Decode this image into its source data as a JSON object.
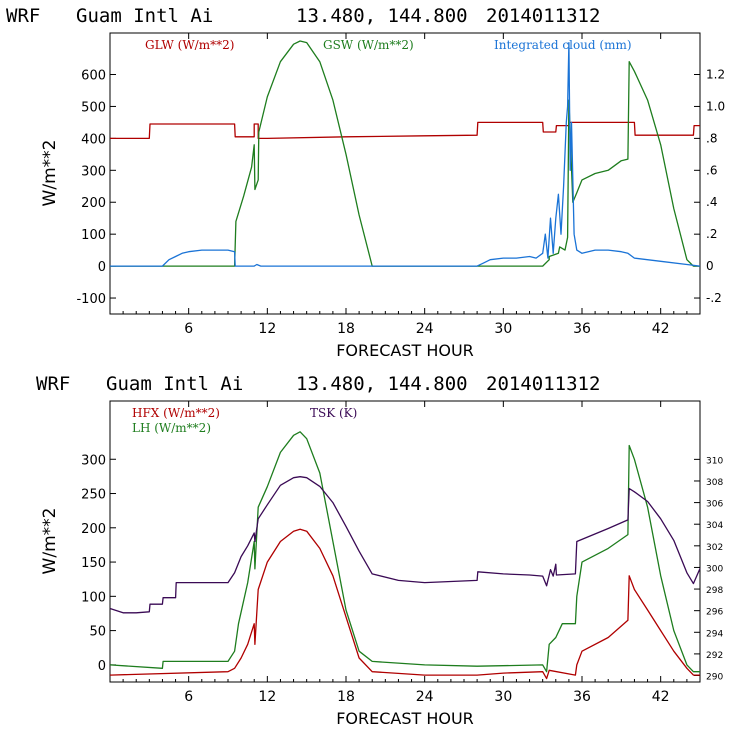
{
  "colors": {
    "red": "#b00000",
    "green": "#1e7d1e",
    "blue": "#1a73d6",
    "purple": "#3a0a55",
    "axis": "#000000"
  },
  "chart_data": [
    {
      "type": "line",
      "header": [
        "WRF",
        "Guam Intl Ai",
        "13.480, 144.800",
        "2014011312"
      ],
      "xlabel": "FORECAST HOUR",
      "ylabel": "W/m**2",
      "xlim": [
        0,
        45
      ],
      "ylim": [
        -150,
        730
      ],
      "y2lim": [
        -0.3,
        1.46
      ],
      "xticks": [
        6,
        12,
        18,
        24,
        30,
        36,
        42
      ],
      "xtick_labels": [
        "6",
        "12",
        "18",
        "24",
        "30",
        "36",
        "42"
      ],
      "yticks": [
        -100,
        0,
        100,
        200,
        300,
        400,
        500,
        600
      ],
      "ytick_labels": [
        "-100",
        "0",
        "100",
        "200",
        "300",
        "400",
        "500",
        "600"
      ],
      "y2ticks": [
        -0.2,
        0,
        0.2,
        0.4,
        0.6,
        0.8,
        1.0,
        1.2
      ],
      "y2tick_labels": [
        "-.2",
        "0",
        ".2",
        ".4",
        ".6",
        ".8",
        "1.0",
        "1.2"
      ],
      "series": [
        {
          "name": "GLW (W/m**2)",
          "color": "red",
          "axis": "left",
          "x": [
            0,
            3,
            3.05,
            9.5,
            9.55,
            11,
            11,
            11.3,
            11.3,
            12,
            18,
            24,
            28,
            28.05,
            33,
            33.05,
            34,
            34.05,
            35,
            35.05,
            40,
            40.05,
            44.5,
            44.55,
            45
          ],
          "y": [
            400,
            400,
            445,
            445,
            405,
            405,
            445,
            445,
            400,
            400,
            405,
            408,
            410,
            450,
            450,
            420,
            420,
            440,
            440,
            450,
            450,
            410,
            410,
            440,
            440
          ]
        },
        {
          "name": "GSW (W/m**2)",
          "color": "green",
          "axis": "left",
          "x": [
            0,
            9.5,
            9.6,
            10.2,
            10.8,
            11,
            11.05,
            11.3,
            11.35,
            12,
            13,
            14,
            14.5,
            15,
            16,
            17,
            18,
            19,
            20,
            20.05,
            33,
            33.5,
            33.5,
            34.2,
            34.3,
            34.7,
            34.9,
            35,
            35.3,
            35.6,
            35.7,
            36,
            37,
            38,
            39,
            39.5,
            39.6,
            40,
            41,
            42,
            43,
            44,
            44.5,
            45
          ],
          "y": [
            0,
            0,
            140,
            220,
            310,
            380,
            240,
            270,
            420,
            530,
            640,
            695,
            705,
            700,
            640,
            520,
            350,
            160,
            0,
            0,
            0,
            20,
            30,
            40,
            60,
            50,
            90,
            520,
            200,
            230,
            240,
            270,
            290,
            300,
            330,
            335,
            640,
            610,
            520,
            380,
            180,
            20,
            0,
            0
          ]
        },
        {
          "name": "Integrated cloud (mm)",
          "color": "blue",
          "axis": "right",
          "x": [
            0,
            4,
            4.5,
            5,
            5.5,
            6,
            7,
            9,
            9.5,
            9.55,
            11,
            11.2,
            11.5,
            12,
            28,
            28.5,
            29,
            30,
            31,
            32,
            32.5,
            33,
            33.2,
            33.4,
            33.6,
            33.8,
            34,
            34.2,
            34.4,
            34.6,
            34.8,
            34.9,
            35.0,
            35.1,
            35.2,
            35.4,
            35.6,
            36,
            37,
            38,
            39,
            39.5,
            40,
            42,
            44,
            45
          ],
          "y": [
            0,
            0,
            0.04,
            0.06,
            0.08,
            0.09,
            0.1,
            0.1,
            0.09,
            0,
            0,
            0.01,
            0,
            0,
            0,
            0.02,
            0.04,
            0.05,
            0.05,
            0.06,
            0.05,
            0.08,
            0.2,
            0.05,
            0.3,
            0.08,
            0.3,
            0.45,
            0.2,
            0.5,
            0.9,
            1.0,
            1.4,
            0.6,
            0.9,
            0.2,
            0.1,
            0.08,
            0.1,
            0.1,
            0.09,
            0.08,
            0.05,
            0.03,
            0.01,
            0
          ]
        }
      ]
    },
    {
      "type": "line",
      "header": [
        "WRF",
        "Guam Intl Ai",
        "13.480, 144.800",
        "2014011312"
      ],
      "xlabel": "FORECAST HOUR",
      "ylabel": "W/m**2",
      "xlim": [
        0,
        45
      ],
      "ylim": [
        -25,
        385
      ],
      "y2lim": [
        289.4,
        315.4
      ],
      "xticks": [
        6,
        12,
        18,
        24,
        30,
        36,
        42
      ],
      "xtick_labels": [
        "6",
        "12",
        "18",
        "24",
        "30",
        "36",
        "42"
      ],
      "yticks": [
        0,
        50,
        100,
        150,
        200,
        250,
        300
      ],
      "ytick_labels": [
        "0",
        "50",
        "100",
        "150",
        "200",
        "250",
        "300"
      ],
      "y2ticks": [
        290,
        292,
        294,
        296,
        298,
        300,
        302,
        304,
        306,
        308,
        310
      ],
      "y2tick_labels": [
        "290",
        "292",
        "294",
        "296",
        "298",
        "300",
        "302",
        "304",
        "306",
        "308",
        "310"
      ],
      "series": [
        {
          "name": "HFX (W/m**2)",
          "color": "red",
          "axis": "left",
          "x": [
            0,
            9,
            9.5,
            10,
            10.5,
            11,
            11.05,
            11.3,
            12,
            13,
            14,
            14.5,
            15,
            16,
            17,
            18,
            19,
            20,
            24,
            28,
            30,
            33,
            33.3,
            33.5,
            35.5,
            35.6,
            36,
            38,
            39.5,
            39.6,
            40,
            41,
            42,
            43,
            44,
            44.5,
            45
          ],
          "y": [
            -15,
            -10,
            -5,
            10,
            30,
            60,
            30,
            110,
            150,
            180,
            195,
            198,
            195,
            170,
            130,
            70,
            10,
            -10,
            -15,
            -15,
            -12,
            -10,
            -20,
            -8,
            -15,
            0,
            20,
            40,
            65,
            130,
            110,
            80,
            50,
            20,
            -5,
            -15,
            -15
          ]
        },
        {
          "name": "LH (W/m**2)",
          "color": "green",
          "axis": "left",
          "x": [
            0,
            4,
            4.05,
            9,
            9.5,
            9.8,
            10.5,
            11,
            11.05,
            11.3,
            12,
            13,
            14,
            14.5,
            15,
            16,
            17,
            18,
            19,
            20,
            24,
            28,
            33,
            33.3,
            33.5,
            34,
            34.5,
            35.5,
            35.6,
            36,
            38,
            39.5,
            39.6,
            40,
            41,
            42,
            43,
            44,
            44.5,
            45
          ],
          "y": [
            0,
            -5,
            5,
            5,
            20,
            60,
            120,
            180,
            140,
            230,
            260,
            310,
            335,
            340,
            330,
            280,
            180,
            80,
            20,
            5,
            0,
            -2,
            0,
            -10,
            30,
            40,
            60,
            60,
            100,
            150,
            170,
            190,
            320,
            300,
            230,
            130,
            50,
            0,
            -10,
            -10
          ]
        },
        {
          "name": "TSK (K)",
          "color": "purple",
          "axis": "right",
          "x": [
            0,
            1,
            2,
            3,
            3.05,
            4,
            4.05,
            5,
            5.05,
            9,
            9.5,
            10,
            10.5,
            11,
            11.05,
            11.3,
            12,
            13,
            14,
            14.5,
            15,
            16,
            17,
            18,
            19,
            20,
            22,
            24,
            26,
            28,
            28.05,
            30,
            32,
            33,
            33.3,
            33.6,
            33.8,
            34,
            34.05,
            35.5,
            35.6,
            38,
            39.5,
            39.6,
            40,
            41,
            42,
            43,
            44,
            44.5,
            45
          ],
          "y": [
            296.2,
            295.8,
            295.8,
            295.9,
            296.6,
            296.6,
            297.2,
            297.2,
            298.6,
            298.6,
            299.5,
            301,
            302,
            303.2,
            302.4,
            304.5,
            305.8,
            307.6,
            308.3,
            308.4,
            308.3,
            307.5,
            306,
            303.8,
            301.5,
            299.4,
            298.8,
            298.6,
            298.7,
            298.8,
            299.6,
            299.4,
            299.3,
            299.2,
            298.3,
            299.8,
            299.2,
            300.3,
            299.3,
            299.4,
            302.4,
            303.6,
            304.4,
            307.3,
            307,
            306.1,
            304.5,
            302.5,
            299.5,
            298.5,
            299.9
          ]
        }
      ]
    }
  ]
}
